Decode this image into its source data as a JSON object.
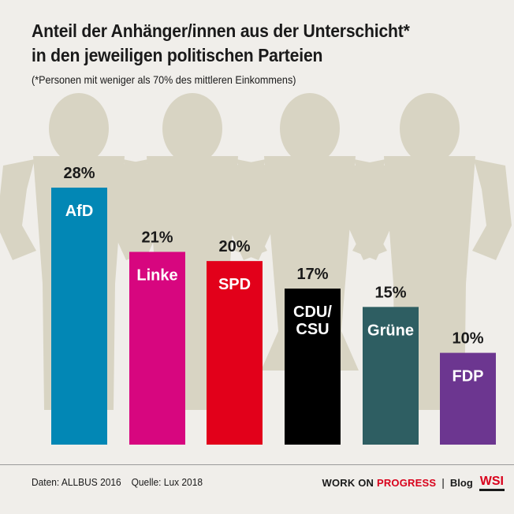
{
  "title_lines": [
    "Anteil der Anhänger/innen aus der Unterschicht*",
    "in den jeweiligen politischen Parteien"
  ],
  "subtitle": "(*Personen mit weniger als 70% des mittleren Einkommens)",
  "footer": {
    "data_source": "Daten: ALLBUS 2016",
    "source": "Quelle: Lux 2018",
    "brand_prefix": "WORK ON ",
    "brand_accent": "PROGRESS",
    "separator": "|",
    "blog": "Blog",
    "logo": "WSI"
  },
  "colors": {
    "background": "#f0eeea",
    "silhouette": "#d8d4c3",
    "AfD": "#0287b5",
    "Linke": "#d7067f",
    "SPD": "#e2001a",
    "CDU/CSU": "#000000",
    "Grüne": "#2e5e62",
    "FDP": "#6c3690"
  },
  "decoration": {
    "silhouette_icon": "person-silhouette-icon",
    "count": 4
  },
  "chart_data": {
    "type": "bar",
    "categories": [
      "AfD",
      "Linke",
      "SPD",
      "CDU/CSU",
      "Grüne",
      "FDP"
    ],
    "bar_labels": [
      [
        "AfD"
      ],
      [
        "Linke"
      ],
      [
        "SPD"
      ],
      [
        "CDU/",
        "CSU"
      ],
      [
        "Grüne"
      ],
      [
        "FDP"
      ]
    ],
    "values": [
      28,
      21,
      20,
      17,
      15,
      10
    ],
    "value_labels": [
      "28%",
      "21%",
      "20%",
      "17%",
      "15%",
      "10%"
    ],
    "unit": "%",
    "ylim": [
      0,
      28
    ],
    "xlabel": "",
    "ylabel": "",
    "grid": false,
    "legend": "none"
  }
}
